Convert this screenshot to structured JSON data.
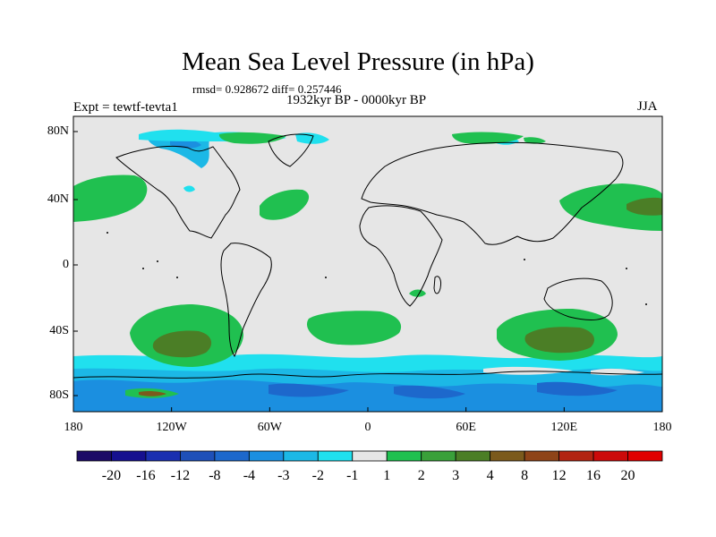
{
  "plot": {
    "title": "Mean Sea Level Pressure (in hPa)",
    "stats": "rmsd= 0.928672 diff= 0.257446",
    "period": "1932kyr BP - 0000kyr BP",
    "experiment": "Expt = tewtf-tevta1",
    "season": "JJA"
  },
  "axes": {
    "x_ticks": [
      "180",
      "120W",
      "60W",
      "0",
      "60E",
      "120E",
      "180"
    ],
    "y_ticks": [
      "80N",
      "40N",
      "0",
      "40S",
      "80S"
    ]
  },
  "colorbar": {
    "labels": [
      "-20",
      "-16",
      "-12",
      "-8",
      "-4",
      "-3",
      "-2",
      "-1",
      "1",
      "2",
      "3",
      "4",
      "8",
      "12",
      "16",
      "20"
    ],
    "colors": [
      "#1c0a66",
      "#16108f",
      "#1a2fb0",
      "#1e50b8",
      "#1d68cc",
      "#1b8fe0",
      "#1cb8e6",
      "#20e0ee",
      "#e6e6e6",
      "#20c050",
      "#3aa03a",
      "#4b7e26",
      "#7b5a1c",
      "#8e4418",
      "#b22412",
      "#cc0a0a",
      "#e00000"
    ]
  },
  "map_colors": {
    "background": "#e6e6e6",
    "light_cyan": "#20e0ee",
    "cyan": "#1cb8e6",
    "blue": "#1b8fe0",
    "dark_blue": "#1d68cc",
    "green": "#20c050",
    "dark_green": "#4b7e26",
    "brown": "#7b5a1c"
  }
}
